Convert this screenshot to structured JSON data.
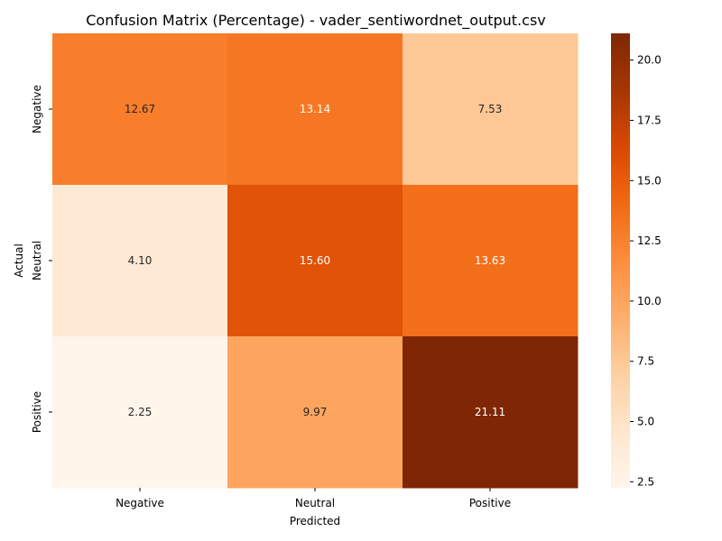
{
  "chart_data": {
    "type": "heatmap",
    "title": "Confusion Matrix (Percentage) - vader_sentiwordnet_output.csv",
    "xlabel": "Predicted",
    "ylabel": "Actual",
    "x_categories": [
      "Negative",
      "Neutral",
      "Positive"
    ],
    "y_categories": [
      "Negative",
      "Neutral",
      "Positive"
    ],
    "values": [
      [
        12.67,
        13.14,
        7.53
      ],
      [
        4.1,
        15.6,
        13.63
      ],
      [
        2.25,
        9.97,
        21.11
      ]
    ],
    "value_format": "2 decimals",
    "colormap": "Oranges",
    "colorbar": {
      "min": 2.25,
      "max": 21.11,
      "ticks": [
        "2.5",
        "5.0",
        "7.5",
        "10.0",
        "12.5",
        "15.0",
        "17.5",
        "20.0"
      ]
    },
    "grid": false
  }
}
